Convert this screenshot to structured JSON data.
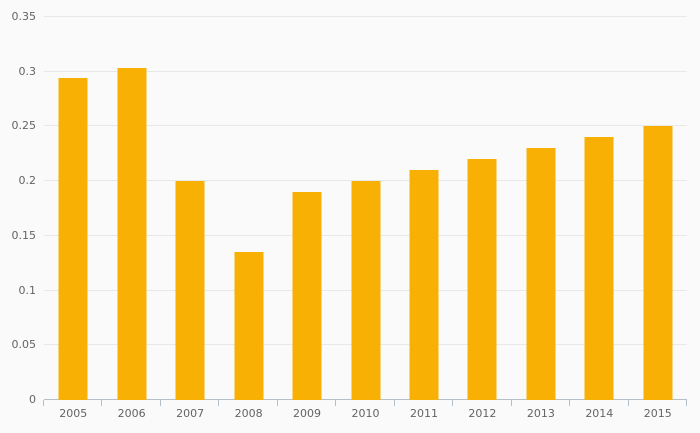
{
  "chart_data": {
    "type": "bar",
    "title": "",
    "xlabel": "",
    "ylabel": "",
    "categories": [
      "2005",
      "2006",
      "2007",
      "2008",
      "2009",
      "2010",
      "2011",
      "2012",
      "2013",
      "2014",
      "2015"
    ],
    "values": [
      0.294,
      0.303,
      0.2,
      0.135,
      0.19,
      0.2,
      0.21,
      0.22,
      0.23,
      0.24,
      0.25
    ],
    "ylim": [
      0,
      0.35
    ],
    "ytick_interval": 0.05,
    "ytick_labels": [
      "0.35",
      "0.3",
      "0.25",
      "0.2",
      "0.15",
      "0.1",
      "0.05",
      "0"
    ],
    "grid": true,
    "legend": false,
    "colors": {
      "bar": "#f9b005",
      "background": "#fafafa",
      "gridline": "#e8e8e8",
      "axis": "#b3bfca",
      "label": "#646464"
    }
  }
}
